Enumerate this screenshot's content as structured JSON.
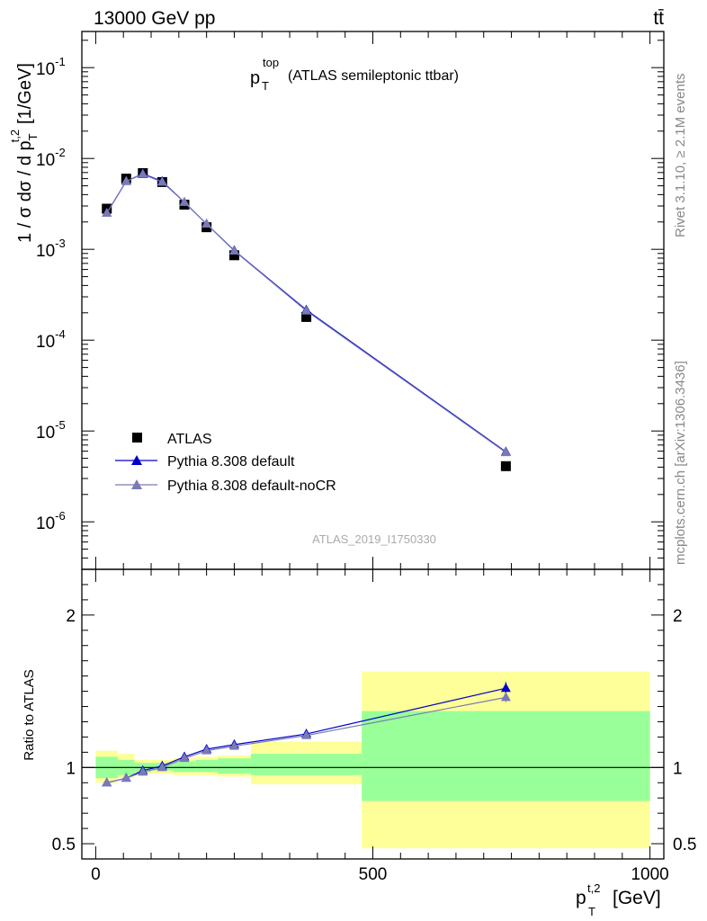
{
  "header": {
    "left": "13000 GeV pp",
    "right": "tt̄"
  },
  "side": {
    "rivet": "Rivet 3.1.10, ≥ 2.1M events",
    "mcplots": "mcplots.cern.ch [arXiv:1306.3436]"
  },
  "chart_data": [
    {
      "type": "scatter",
      "title_main": "p",
      "title_sub": "T",
      "title_sup": "top",
      "title_rest": "(ATLAS semileptonic ttbar)",
      "watermark": "ATLAS_2019_I1750330",
      "ylabel": "1 / σ dσ / d p",
      "ylabel_sup": "t,2",
      "ylabel_sub": "T",
      "ylabel_unit": "[1/GeV]",
      "yscale": "log",
      "ylim": [
        3e-07,
        0.25
      ],
      "xlim": [
        -25,
        1025
      ],
      "yticks": [
        {
          "v": 1e-06,
          "exp": "-6"
        },
        {
          "v": 1e-05,
          "exp": "-5"
        },
        {
          "v": 0.0001,
          "exp": "-4"
        },
        {
          "v": 0.001,
          "exp": "-3"
        },
        {
          "v": 0.01,
          "exp": "-2"
        },
        {
          "v": 0.1,
          "exp": "-1"
        }
      ],
      "legend": {
        "placement": "lower-left",
        "entries": [
          "ATLAS",
          "Pythia 8.308 default",
          "Pythia 8.308 default-noCR"
        ]
      },
      "series": [
        {
          "name": "ATLAS",
          "color": "#000000",
          "marker": "square",
          "x": [
            20,
            55,
            85,
            120,
            160,
            200,
            250,
            380,
            740
          ],
          "y": [
            0.0028,
            0.006,
            0.0069,
            0.0055,
            0.0031,
            0.00175,
            0.00086,
            0.00018,
            4.1e-06
          ]
        },
        {
          "name": "Pythia 8.308 default",
          "color": "#0000cc",
          "marker": "triangle",
          "x": [
            20,
            55,
            85,
            120,
            160,
            200,
            250,
            380,
            740
          ],
          "y": [
            0.0025,
            0.0056,
            0.0068,
            0.0056,
            0.0033,
            0.0019,
            0.00097,
            0.000215,
            5.9e-06
          ]
        },
        {
          "name": "Pythia 8.308 default-noCR",
          "color": "#7a7ab5",
          "marker": "triangle",
          "x": [
            20,
            55,
            85,
            120,
            160,
            200,
            250,
            380,
            740
          ],
          "y": [
            0.0025,
            0.0056,
            0.0067,
            0.0055,
            0.0033,
            0.0019,
            0.00096,
            0.00021,
            5.8e-06
          ]
        }
      ]
    },
    {
      "type": "scatter",
      "ylabel": "Ratio to ATLAS",
      "xlabel": "p",
      "xlabel_sup": "t,2",
      "xlabel_sub": "T",
      "xlabel_unit": "[GeV]",
      "xlim": [
        -25,
        1025
      ],
      "ylim": [
        0.4,
        2.3
      ],
      "xticks": [
        0,
        500,
        1000
      ],
      "yticks": [
        0.5,
        1,
        2
      ],
      "bands": [
        {
          "x0": 0,
          "x1": 40,
          "stat": [
            0.93,
            1.07
          ],
          "total": [
            0.9,
            1.11
          ]
        },
        {
          "x0": 40,
          "x1": 70,
          "stat": [
            0.95,
            1.05
          ],
          "total": [
            0.93,
            1.09
          ]
        },
        {
          "x0": 70,
          "x1": 100,
          "stat": [
            0.97,
            1.03
          ],
          "total": [
            0.96,
            1.05
          ]
        },
        {
          "x0": 100,
          "x1": 140,
          "stat": [
            0.98,
            1.03
          ],
          "total": [
            0.96,
            1.05
          ]
        },
        {
          "x0": 140,
          "x1": 180,
          "stat": [
            0.97,
            1.04
          ],
          "total": [
            0.95,
            1.06
          ]
        },
        {
          "x0": 180,
          "x1": 220,
          "stat": [
            0.97,
            1.05
          ],
          "total": [
            0.95,
            1.07
          ]
        },
        {
          "x0": 220,
          "x1": 280,
          "stat": [
            0.96,
            1.06
          ],
          "total": [
            0.94,
            1.08
          ]
        },
        {
          "x0": 280,
          "x1": 480,
          "stat": [
            0.95,
            1.09
          ],
          "total": [
            0.89,
            1.17
          ]
        },
        {
          "x0": 480,
          "x1": 1000,
          "stat": [
            0.78,
            1.37
          ],
          "total": [
            0.47,
            1.63
          ]
        }
      ],
      "series": [
        {
          "name": "Pythia 8.308 default",
          "color": "#0000cc",
          "x": [
            20,
            55,
            85,
            120,
            160,
            200,
            250,
            380,
            740
          ],
          "y": [
            0.9,
            0.93,
            0.98,
            1.01,
            1.07,
            1.12,
            1.15,
            1.22,
            1.52
          ],
          "err": [
            0,
            0,
            0,
            0,
            0.01,
            0.01,
            0.01,
            0.02,
            0.04
          ]
        },
        {
          "name": "Pythia 8.308 default-noCR",
          "color": "#7a7ab5",
          "x": [
            20,
            55,
            85,
            120,
            160,
            200,
            250,
            380,
            740
          ],
          "y": [
            0.9,
            0.93,
            0.97,
            1.0,
            1.06,
            1.11,
            1.14,
            1.21,
            1.46
          ],
          "err": [
            0,
            0,
            0,
            0,
            0.01,
            0.01,
            0.01,
            0.02,
            0.03
          ]
        }
      ]
    }
  ]
}
